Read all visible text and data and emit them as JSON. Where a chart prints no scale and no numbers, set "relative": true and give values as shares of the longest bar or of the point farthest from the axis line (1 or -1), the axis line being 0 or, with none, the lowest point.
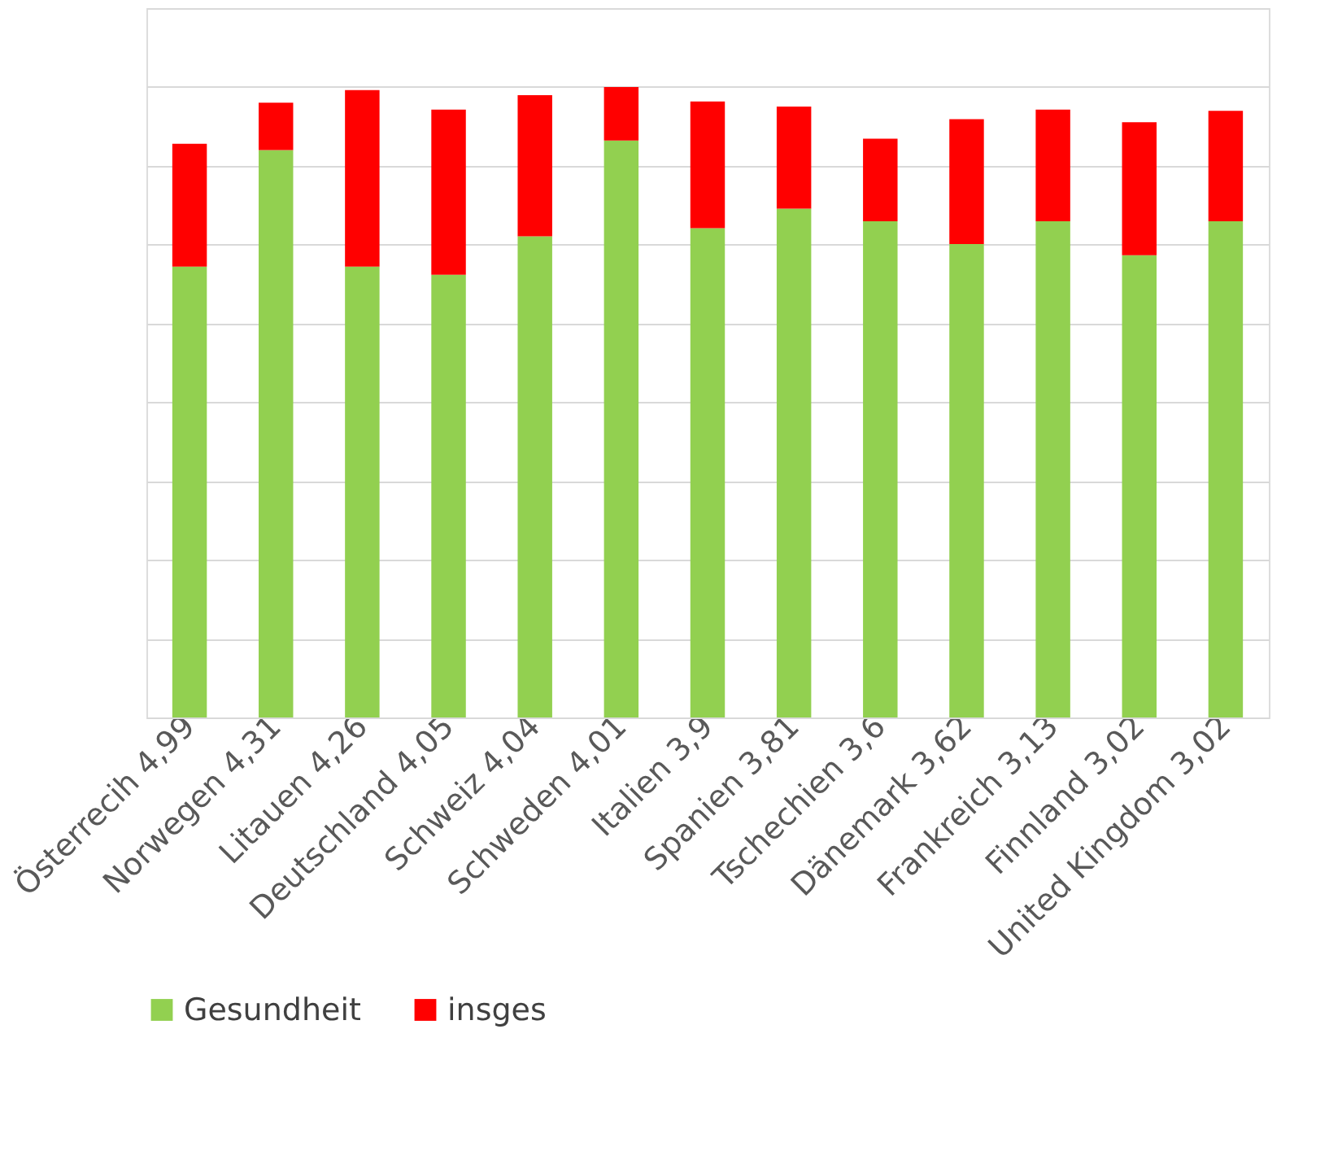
{
  "chart_data": {
    "type": "bar",
    "stacked": true,
    "relative": true,
    "grid": "y",
    "legend": "bottom",
    "categories": [
      "Österrecih 4,99",
      "Norwegen 4,31",
      "Litauen 4,26",
      "Deutschland 4,05",
      "Schweiz 4,04",
      "Schweden 4,01",
      "Italien 3,9",
      "Spanien 3,81",
      "Tschechien 3,6",
      "Dänemark 3,62",
      "Frankreich 3,13",
      "Finnland 3,02",
      "United Kingdom 3,02"
    ],
    "series": [
      {
        "name": "Gesundheit",
        "color": "#92d050",
        "values": [
          0.715,
          0.9,
          0.715,
          0.702,
          0.763,
          0.915,
          0.776,
          0.807,
          0.787,
          0.751,
          0.787,
          0.733,
          0.787
        ]
      },
      {
        "name": "insges",
        "color": "#ff0000",
        "values": [
          0.195,
          0.075,
          0.28,
          0.262,
          0.224,
          0.085,
          0.201,
          0.162,
          0.131,
          0.198,
          0.177,
          0.211,
          0.175
        ]
      }
    ]
  }
}
